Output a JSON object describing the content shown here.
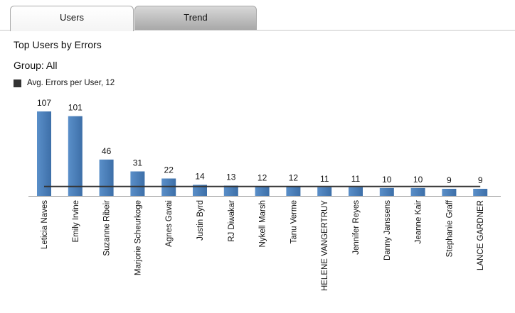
{
  "tabs": [
    {
      "label": "Users",
      "active": true
    },
    {
      "label": "Trend",
      "active": false
    }
  ],
  "chart_title": "Top Users by Errors",
  "group_label": "Group: All",
  "legend": {
    "label": "Avg. Errors per User, 12",
    "color": "#333333"
  },
  "colors": {
    "bar": "#5a8fc9",
    "bar_dark": "#3d6fa8",
    "avg_line": "#333333"
  },
  "chart_data": {
    "type": "bar",
    "title": "Top Users by Errors",
    "categories": [
      "Leticia Naves",
      "Emily Irvine",
      "Suzanne Ribeir",
      "Marjorie Scheurkoge",
      "Agnes Gavai",
      "Justin Byrd",
      "RJ Diwakar",
      "Nykell Marsh",
      "Tanu Verme",
      "HELENE VANGERTRUY",
      "Jennifer Reyes",
      "Danny Janssens",
      "Jeanne Kair",
      "Stephanie Graff",
      "LANCE GARDNER"
    ],
    "values": [
      107,
      101,
      46,
      31,
      22,
      14,
      13,
      12,
      12,
      11,
      11,
      10,
      10,
      9,
      9
    ],
    "reference_line": {
      "name": "Avg. Errors per User",
      "value": 12
    },
    "ylim": [
      0,
      107
    ],
    "grid": false,
    "legend_position": "top-left"
  }
}
